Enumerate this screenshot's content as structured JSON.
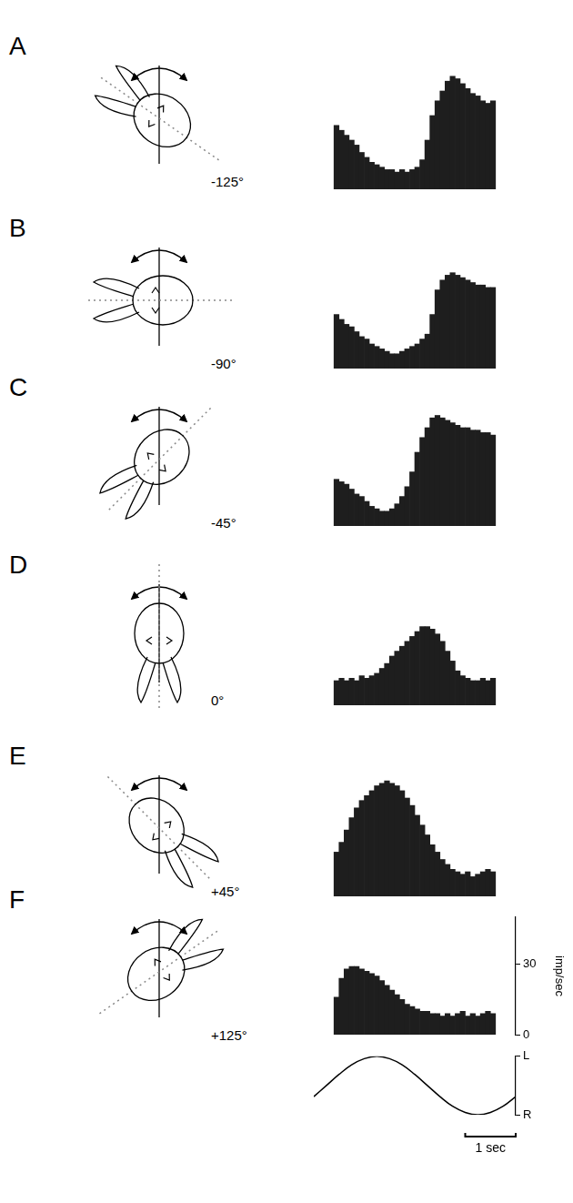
{
  "chart_data": [
    {
      "type": "histogram",
      "panel": "A",
      "head_angle": {
        "value": -125,
        "label": "-125°"
      },
      "color": "#1e1e1e",
      "bins": [
        0,
        0.125,
        0.25,
        0.375,
        0.5,
        0.625,
        0.75,
        0.875,
        1,
        1.125,
        1.25,
        1.375,
        1.5,
        1.625,
        1.75,
        1.875,
        2,
        2.125,
        2.25,
        2.375,
        2.5,
        2.625,
        2.75,
        2.875,
        3,
        3.125,
        3.25,
        3.375,
        3.5,
        3.625,
        3.75,
        3.875,
        4
      ],
      "values": [
        26,
        24,
        22,
        20,
        18,
        15,
        13,
        11,
        10,
        9,
        8,
        8,
        7,
        8,
        7,
        8,
        9,
        12,
        20,
        30,
        36,
        40,
        44,
        46,
        45,
        43,
        41,
        39,
        38,
        36,
        35,
        36
      ],
      "xlim": [
        0,
        4
      ],
      "ylim": [
        0,
        50
      ],
      "tick_labels": false
    },
    {
      "type": "histogram",
      "panel": "B",
      "head_angle": {
        "value": -90,
        "label": "-90°"
      },
      "color": "#1e1e1e",
      "bins": [
        0,
        0.125,
        0.25,
        0.375,
        0.5,
        0.625,
        0.75,
        0.875,
        1,
        1.125,
        1.25,
        1.375,
        1.5,
        1.625,
        1.75,
        1.875,
        2,
        2.125,
        2.25,
        2.375,
        2.5,
        2.625,
        2.75,
        2.875,
        3,
        3.125,
        3.25,
        3.375,
        3.5,
        3.625,
        3.75,
        3.875,
        4
      ],
      "values": [
        22,
        20,
        18,
        17,
        15,
        13,
        12,
        10,
        9,
        8,
        7,
        6,
        6,
        7,
        8,
        9,
        10,
        12,
        14,
        22,
        32,
        36,
        38,
        39,
        38,
        37,
        36,
        35,
        34,
        34,
        33,
        33
      ],
      "xlim": [
        0,
        4
      ],
      "ylim": [
        0,
        50
      ],
      "tick_labels": false
    },
    {
      "type": "histogram",
      "panel": "C",
      "head_angle": {
        "value": -45,
        "label": "-45°"
      },
      "color": "#1e1e1e",
      "bins": [
        0,
        0.125,
        0.25,
        0.375,
        0.5,
        0.625,
        0.75,
        0.875,
        1,
        1.125,
        1.25,
        1.375,
        1.5,
        1.625,
        1.75,
        1.875,
        2,
        2.125,
        2.25,
        2.375,
        2.5,
        2.625,
        2.75,
        2.875,
        3,
        3.125,
        3.25,
        3.375,
        3.5,
        3.625,
        3.75,
        3.875,
        4
      ],
      "values": [
        19,
        18,
        17,
        15,
        13,
        12,
        10,
        8,
        7,
        6,
        6,
        7,
        9,
        12,
        16,
        22,
        30,
        36,
        40,
        44,
        45,
        44,
        43,
        42,
        41,
        40,
        40,
        39,
        39,
        38,
        38,
        37
      ],
      "xlim": [
        0,
        4
      ],
      "ylim": [
        0,
        50
      ],
      "tick_labels": false
    },
    {
      "type": "histogram",
      "panel": "D",
      "head_angle": {
        "value": 0,
        "label": "0°"
      },
      "color": "#1e1e1e",
      "bins": [
        0,
        0.125,
        0.25,
        0.375,
        0.5,
        0.625,
        0.75,
        0.875,
        1,
        1.125,
        1.25,
        1.375,
        1.5,
        1.625,
        1.75,
        1.875,
        2,
        2.125,
        2.25,
        2.375,
        2.5,
        2.625,
        2.75,
        2.875,
        3,
        3.125,
        3.25,
        3.375,
        3.5,
        3.625,
        3.75,
        3.875,
        4
      ],
      "values": [
        10,
        11,
        10,
        11,
        10,
        12,
        11,
        12,
        13,
        15,
        17,
        20,
        22,
        24,
        26,
        28,
        30,
        32,
        32,
        31,
        29,
        26,
        22,
        18,
        14,
        12,
        11,
        10,
        10,
        11,
        10,
        11
      ],
      "xlim": [
        0,
        4
      ],
      "ylim": [
        0,
        50
      ],
      "tick_labels": false
    },
    {
      "type": "histogram",
      "panel": "E",
      "head_angle": {
        "value": 45,
        "label": "+45°"
      },
      "color": "#1e1e1e",
      "bins": [
        0,
        0.125,
        0.25,
        0.375,
        0.5,
        0.625,
        0.75,
        0.875,
        1,
        1.125,
        1.25,
        1.375,
        1.5,
        1.625,
        1.75,
        1.875,
        2,
        2.125,
        2.25,
        2.375,
        2.5,
        2.625,
        2.75,
        2.875,
        3,
        3.125,
        3.25,
        3.375,
        3.5,
        3.625,
        3.75,
        3.875,
        4
      ],
      "values": [
        18,
        22,
        27,
        32,
        36,
        39,
        41,
        43,
        45,
        46,
        47,
        46,
        45,
        43,
        40,
        37,
        33,
        29,
        25,
        21,
        18,
        15,
        13,
        11,
        10,
        9,
        10,
        8,
        9,
        10,
        11,
        10
      ],
      "xlim": [
        0,
        4
      ],
      "ylim": [
        0,
        50
      ],
      "tick_labels": false
    },
    {
      "type": "histogram",
      "panel": "F",
      "head_angle": {
        "value": 125,
        "label": "+125°"
      },
      "color": "#1e1e1e",
      "bins": [
        0,
        0.125,
        0.25,
        0.375,
        0.5,
        0.625,
        0.75,
        0.875,
        1,
        1.125,
        1.25,
        1.375,
        1.5,
        1.625,
        1.75,
        1.875,
        2,
        2.125,
        2.25,
        2.375,
        2.5,
        2.625,
        2.75,
        2.875,
        3,
        3.125,
        3.25,
        3.375,
        3.5,
        3.625,
        3.75,
        3.875,
        4
      ],
      "values": [
        16,
        24,
        28,
        29,
        29,
        28,
        27,
        26,
        25,
        23,
        21,
        19,
        17,
        15,
        13,
        12,
        11,
        10,
        10,
        9,
        9,
        8,
        9,
        8,
        9,
        10,
        8,
        9,
        8,
        9,
        10,
        9
      ],
      "xlim": [
        0,
        4
      ],
      "ylim": [
        0,
        50
      ],
      "yticks": [
        0,
        30
      ],
      "ylabel": "imp/sec",
      "tick_labels": "y"
    },
    {
      "type": "line",
      "color": "#000000",
      "x": [
        0,
        0.25,
        0.5,
        0.75,
        1,
        1.25,
        1.5,
        1.75,
        2,
        2.25,
        2.5,
        2.75,
        3,
        3.25,
        3.5,
        3.75,
        4
      ],
      "values": [
        -0.38,
        0,
        0.38,
        0.71,
        0.92,
        1,
        0.92,
        0.71,
        0.38,
        0,
        -0.38,
        -0.71,
        -0.92,
        -1,
        -0.92,
        -0.71,
        -0.38
      ],
      "xlim": [
        0,
        4
      ],
      "ylim": [
        -1,
        1
      ],
      "yticks": [
        {
          "value": 1,
          "label": "L"
        },
        {
          "value": -1,
          "label": "R"
        }
      ],
      "tick_labels": "y",
      "time_scale_bar": {
        "value": 1,
        "label": "1 sec"
      }
    }
  ]
}
